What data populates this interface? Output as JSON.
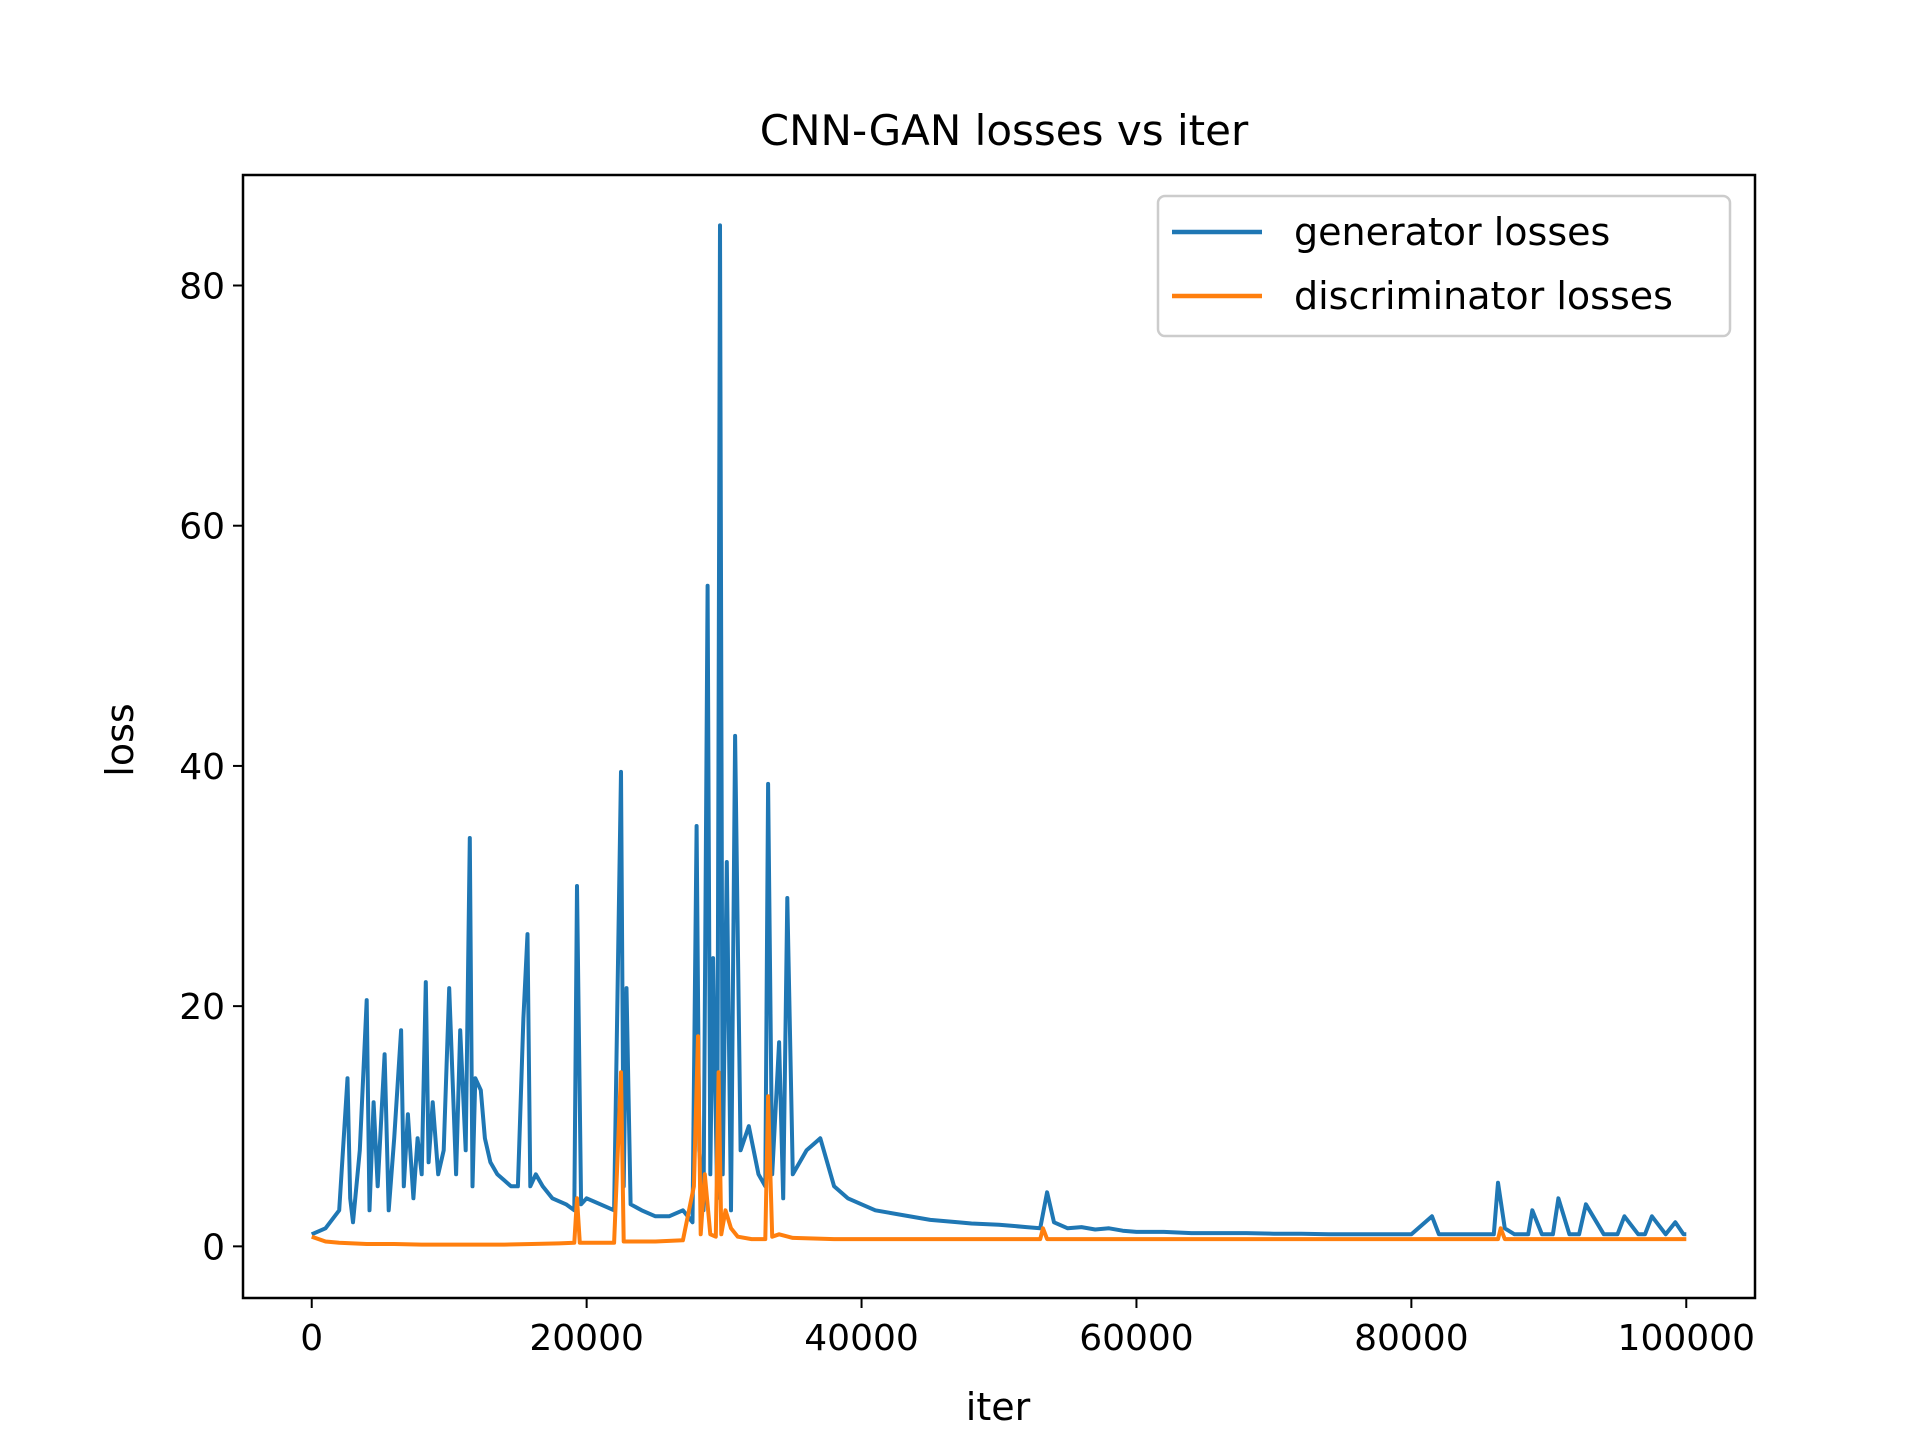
{
  "chart_data": {
    "type": "line",
    "title": "CNN-GAN losses vs iter",
    "xlabel": "iter",
    "ylabel": "loss",
    "xlim": [
      -5000,
      105000
    ],
    "ylim": [
      -4.3,
      89.2
    ],
    "xticks": [
      0,
      20000,
      40000,
      60000,
      80000,
      100000
    ],
    "xtick_labels": [
      "0",
      "20000",
      "40000",
      "60000",
      "80000",
      "100000"
    ],
    "yticks": [
      0,
      20,
      40,
      60,
      80
    ],
    "ytick_labels": [
      "0",
      "20",
      "40",
      "60",
      "80"
    ],
    "grid": false,
    "legend_position": "top-right",
    "series": [
      {
        "name": "generator losses",
        "color": "#1f77b4",
        "x": [
          0,
          1000,
          2000,
          2600,
          2800,
          3000,
          3500,
          4000,
          4200,
          4500,
          4800,
          5300,
          5600,
          6000,
          6500,
          6700,
          7000,
          7400,
          7700,
          8000,
          8300,
          8500,
          8800,
          9200,
          9600,
          10000,
          10500,
          10800,
          11200,
          11500,
          11700,
          11900,
          12300,
          12600,
          13000,
          13500,
          14000,
          14500,
          15000,
          15400,
          15700,
          15900,
          16300,
          16800,
          17500,
          18500,
          19100,
          19300,
          19600,
          20000,
          21000,
          22000,
          22500,
          22700,
          22900,
          23200,
          24000,
          25000,
          26000,
          27000,
          27700,
          28000,
          28200,
          28500,
          28800,
          29000,
          29200,
          29500,
          29700,
          29900,
          30200,
          30500,
          30800,
          31200,
          31800,
          32500,
          33000,
          33200,
          33500,
          34000,
          34300,
          34600,
          35000,
          36000,
          37000,
          38000,
          39000,
          40000,
          41000,
          42000,
          43000,
          44000,
          45000,
          47000,
          48000,
          50000,
          51000,
          52000,
          53000,
          53500,
          54000,
          55000,
          56000,
          57000,
          58000,
          59000,
          60000,
          62000,
          64000,
          66000,
          68000,
          70000,
          72000,
          74000,
          76000,
          78000,
          80000,
          81500,
          82000,
          84000,
          86000,
          86300,
          86800,
          87500,
          88500,
          88800,
          89500,
          90300,
          90700,
          91500,
          92200,
          92700,
          94000,
          95000,
          95500,
          96500,
          97000,
          97500,
          98500,
          99200,
          99800,
          100000
        ],
        "values": [
          1,
          1.5,
          3,
          14,
          4,
          2,
          8,
          20.5,
          3,
          12,
          5,
          16,
          3,
          9,
          18,
          5,
          11,
          4,
          9,
          6,
          22,
          7,
          12,
          6,
          8,
          21.5,
          6,
          18,
          8,
          34,
          5,
          14,
          13,
          9,
          7,
          6,
          5.5,
          5,
          5,
          19,
          26,
          5,
          6,
          5,
          4,
          3.5,
          3,
          30,
          3.5,
          4,
          3.5,
          3,
          39.5,
          5,
          21.5,
          3.5,
          3,
          2.5,
          2.5,
          3,
          2,
          35,
          8,
          3,
          55,
          6,
          24,
          4,
          85,
          6,
          32,
          3,
          42.5,
          8,
          10,
          6,
          5,
          38.5,
          6,
          17,
          4,
          29,
          6,
          8,
          9,
          5,
          4,
          3.5,
          3,
          2.8,
          2.6,
          2.4,
          2.2,
          2,
          1.9,
          1.8,
          1.7,
          1.6,
          1.5,
          4.5,
          2,
          1.5,
          1.6,
          1.4,
          1.5,
          1.3,
          1.2,
          1.2,
          1.1,
          1.1,
          1.1,
          1.05,
          1.05,
          1.0,
          1.0,
          1.0,
          1.0,
          2.5,
          1.0,
          1.0,
          1.0,
          5.3,
          1.5,
          1.0,
          1.0,
          3.0,
          1.0,
          1.0,
          4.0,
          1.0,
          1.0,
          3.5,
          1.0,
          1.0,
          2.5,
          1.0,
          1.0,
          2.5,
          1.0,
          2.0,
          1.0,
          1.0
        ]
      },
      {
        "name": "discriminator losses",
        "color": "#ff7f0e",
        "x": [
          0,
          1000,
          2000,
          3000,
          4000,
          5000,
          6000,
          8000,
          10000,
          12000,
          14000,
          16000,
          18000,
          19100,
          19300,
          19500,
          20000,
          22000,
          22500,
          22700,
          23000,
          25000,
          27000,
          27800,
          28100,
          28300,
          28600,
          29000,
          29400,
          29600,
          29800,
          30100,
          30500,
          31000,
          32000,
          33000,
          33200,
          33500,
          34000,
          35000,
          38000,
          40000,
          42000,
          45000,
          50000,
          53000,
          53200,
          53500,
          55000,
          60000,
          65000,
          70000,
          80000,
          86300,
          86500,
          86800,
          90000,
          95000,
          100000
        ],
        "values": [
          0.8,
          0.4,
          0.3,
          0.25,
          0.2,
          0.2,
          0.2,
          0.15,
          0.15,
          0.15,
          0.15,
          0.2,
          0.25,
          0.3,
          4,
          0.3,
          0.3,
          0.3,
          14.5,
          0.4,
          0.4,
          0.4,
          0.5,
          5,
          17.5,
          1,
          6,
          1,
          0.8,
          14.5,
          1,
          3,
          1.5,
          0.8,
          0.6,
          0.6,
          12.5,
          0.8,
          1,
          0.7,
          0.6,
          0.6,
          0.6,
          0.6,
          0.6,
          0.6,
          1.5,
          0.6,
          0.6,
          0.6,
          0.6,
          0.6,
          0.6,
          0.6,
          1.5,
          0.6,
          0.6,
          0.6,
          0.6
        ]
      }
    ]
  }
}
